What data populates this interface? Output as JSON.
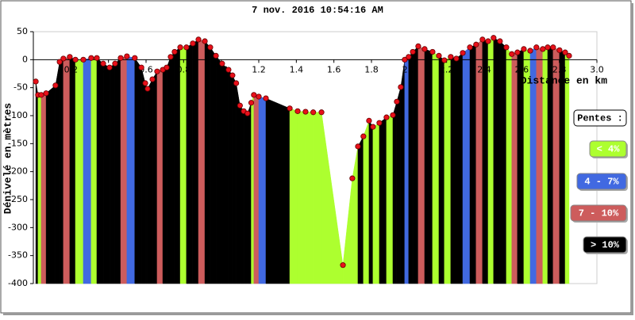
{
  "chart_data": {
    "type": "elevation",
    "title": "7 nov. 2016 10:54:16 AM",
    "x_label": "Distance en km",
    "y_label": "Dénivelé en mètres",
    "xlim": [
      0,
      3
    ],
    "ylim": [
      -400,
      50
    ],
    "xticks": [
      0.2,
      0.4,
      0.6,
      0.8,
      {
        "value": 1,
        "label": "1.0"
      },
      1.2,
      1.4,
      1.6,
      1.8,
      {
        "value": 2,
        "label": "2.0"
      },
      2.2,
      2.4,
      2.6,
      2.8,
      {
        "value": 3,
        "label": "3.0"
      }
    ],
    "yticks": [
      50,
      0,
      -50,
      -100,
      -150,
      -200,
      -250,
      -300,
      -350,
      -400
    ],
    "x": [
      0.013,
      0.025,
      0.042,
      0.068,
      0.118,
      0.14,
      0.16,
      0.194,
      0.224,
      0.266,
      0.308,
      0.338,
      0.372,
      0.406,
      0.435,
      0.465,
      0.498,
      0.54,
      0.575,
      0.596,
      0.608,
      0.634,
      0.659,
      0.689,
      0.71,
      0.731,
      0.752,
      0.782,
      0.815,
      0.849,
      0.879,
      0.913,
      0.942,
      0.972,
      1.005,
      1.039,
      1.06,
      1.08,
      1.1,
      1.12,
      1.14,
      1.16,
      1.174,
      1.2,
      1.238,
      1.365,
      1.407,
      1.449,
      1.49,
      1.534,
      1.648,
      1.698,
      1.728,
      1.757,
      1.787,
      1.808,
      1.842,
      1.88,
      1.914,
      1.935,
      1.956,
      1.977,
      1.998,
      2.02,
      2.049,
      2.083,
      2.125,
      2.159,
      2.188,
      2.222,
      2.252,
      2.286,
      2.324,
      2.357,
      2.391,
      2.421,
      2.45,
      2.484,
      2.518,
      2.547,
      2.577,
      2.611,
      2.645,
      2.678,
      2.712,
      2.738,
      2.767,
      2.801,
      2.831,
      2.852
    ],
    "series": [
      {
        "color": "#e8101a",
        "values": [
          -39,
          -63,
          -63,
          -60,
          -46,
          -4,
          2,
          5,
          0,
          0,
          3,
          3,
          -7,
          -14,
          -7,
          3,
          6,
          3,
          -14,
          -42,
          -52,
          -35,
          -21,
          -18,
          -14,
          5,
          14,
          22,
          22,
          29,
          36,
          33,
          22,
          7,
          -7,
          -18,
          -28,
          -42,
          -82,
          -92,
          -96,
          -77,
          -63,
          -66,
          -69,
          -87,
          -92,
          -93,
          -94,
          -94,
          -367,
          -212,
          -155,
          -137,
          -109,
          -120,
          -113,
          -103,
          -99,
          -75,
          -49,
          0,
          5,
          14,
          24,
          19,
          14,
          7,
          -1,
          5,
          2,
          12,
          22,
          27,
          36,
          33,
          39,
          33,
          22,
          10,
          13,
          19,
          16,
          22,
          19,
          22,
          22,
          17,
          13,
          7
        ]
      }
    ],
    "segment_colors": [
      "#000000",
      "#adff2f",
      "#cd5c5c",
      "#000000",
      "#000000",
      "#000000",
      "#cd5c5c",
      "#000000",
      "#adff2f",
      "#4169e1",
      "#adff2f",
      "#000000",
      "#000000",
      "#000000",
      "#000000",
      "#cd5c5c",
      "#4169e1",
      "#000000",
      "#000000",
      "#000000",
      "#000000",
      "#000000",
      "#cd5c5c",
      "#000000",
      "#000000",
      "#000000",
      "#000000",
      "#adff2f",
      "#000000",
      "#000000",
      "#cd5c5c",
      "#000000",
      "#000000",
      "#000000",
      "#000000",
      "#000000",
      "#000000",
      "#000000",
      "#000000",
      "#000000",
      "#000000",
      "#adff2f",
      "#cd5c5c",
      "#4169e1",
      "#000000",
      "#adff2f",
      "#adff2f",
      "#adff2f",
      "#adff2f",
      "#adff2f",
      "#adff2f",
      "#adff2f",
      "#000000",
      "#adff2f",
      "#000000",
      "#adff2f",
      "#000000",
      "#adff2f",
      "#000000",
      "#000000",
      "#000000",
      "#4169e1",
      "#000000",
      "#000000",
      "#cd5c5c",
      "#000000",
      "#adff2f",
      "#000000",
      "#adff2f",
      "#000000",
      "#000000",
      "#4169e1",
      "#000000",
      "#cd5c5c",
      "#000000",
      "#adff2f",
      "#000000",
      "#000000",
      "#adff2f",
      "#cd5c5c",
      "#000000",
      "#adff2f",
      "#4169e1",
      "#cd5c5c",
      "#adff2f",
      "#000000",
      "#cd5c5c",
      "#000000",
      "#adff2f"
    ],
    "legend": {
      "title": "Pentes :",
      "items": [
        {
          "label": "< 4%",
          "color": "#adff2f"
        },
        {
          "label": "4 - 7%",
          "color": "#4169e1"
        },
        {
          "label": "7 - 10%",
          "color": "#cd5c5c"
        },
        {
          "label": "> 10%",
          "color": "#000000"
        }
      ]
    }
  }
}
